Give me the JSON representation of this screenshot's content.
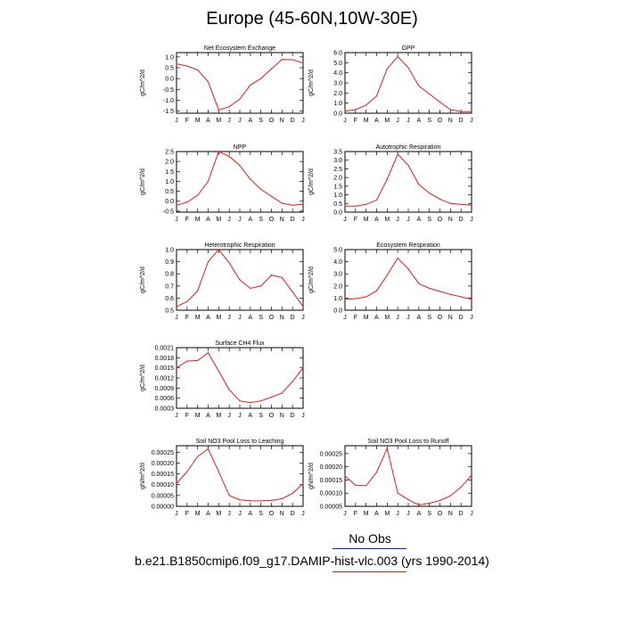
{
  "page": {
    "title": "Europe (45-60N,10W-30E)",
    "legend": {
      "obs_label": "No Obs",
      "case_label": "b.e21.B1850cmip6.f09_g17.DAMIP-hist-vlc.003 (yrs 1990-2014)",
      "obs_color": "#0b2a8c",
      "case_color": "#e41a1c"
    }
  },
  "chart_data": [
    {
      "type": "line",
      "title": "Net Ecosystem Exchange",
      "ylabel": "gC/m^2/d",
      "categories": [
        "J",
        "F",
        "M",
        "A",
        "M",
        "J",
        "J",
        "A",
        "S",
        "O",
        "N",
        "D",
        "J"
      ],
      "values": [
        0.68,
        0.58,
        0.4,
        -0.15,
        -1.45,
        -1.3,
        -0.95,
        -0.3,
        0.0,
        0.45,
        0.88,
        0.87,
        0.72
      ],
      "ylim": [
        -1.6,
        1.2
      ],
      "yticks": [
        "1.0",
        "0.5",
        "0.0",
        "-0.5",
        "-1.0",
        "-1.5"
      ],
      "ytick_values": [
        1.0,
        0.5,
        0.0,
        -0.5,
        -1.0,
        -1.5
      ],
      "color": "#e41a1c"
    },
    {
      "type": "line",
      "title": "GPP",
      "ylabel": "gC/m^2/d",
      "categories": [
        "J",
        "F",
        "M",
        "A",
        "M",
        "J",
        "J",
        "A",
        "S",
        "O",
        "N",
        "D",
        "J"
      ],
      "values": [
        0.2,
        0.35,
        0.8,
        1.7,
        4.4,
        5.6,
        4.5,
        2.7,
        1.9,
        1.1,
        0.35,
        0.15,
        0.15
      ],
      "ylim": [
        0.0,
        6.0
      ],
      "yticks": [
        "6.0",
        "5.0",
        "4.0",
        "3.0",
        "2.0",
        "1.0",
        "0.0"
      ],
      "ytick_values": [
        6.0,
        5.0,
        4.0,
        3.0,
        2.0,
        1.0,
        0.0
      ],
      "color": "#e41a1c"
    },
    {
      "type": "line",
      "title": "NPP",
      "ylabel": "gC/m^2/d",
      "categories": [
        "J",
        "F",
        "M",
        "A",
        "M",
        "J",
        "J",
        "A",
        "S",
        "O",
        "N",
        "D",
        "J"
      ],
      "values": [
        -0.2,
        -0.05,
        0.3,
        1.0,
        2.5,
        2.25,
        1.8,
        1.1,
        0.6,
        0.25,
        -0.1,
        -0.2,
        -0.15
      ],
      "ylim": [
        -0.55,
        2.5
      ],
      "yticks": [
        "2.5",
        "2.0",
        "1.5",
        "1.0",
        "0.5",
        "0.0",
        "-0.5"
      ],
      "ytick_values": [
        2.5,
        2.0,
        1.5,
        1.0,
        0.5,
        0.0,
        -0.5
      ],
      "color": "#e41a1c"
    },
    {
      "type": "line",
      "title": "Autotrophic Respiration",
      "ylabel": "gC/m^2/d",
      "categories": [
        "J",
        "F",
        "M",
        "A",
        "M",
        "J",
        "J",
        "A",
        "S",
        "O",
        "N",
        "D",
        "J"
      ],
      "values": [
        0.35,
        0.35,
        0.45,
        0.7,
        1.9,
        3.35,
        2.7,
        1.6,
        1.1,
        0.75,
        0.5,
        0.45,
        0.4
      ],
      "ylim": [
        0.0,
        3.5
      ],
      "yticks": [
        "3.5",
        "3.0",
        "2.5",
        "2.0",
        "1.5",
        "1.0",
        "0.5",
        "0.0"
      ],
      "ytick_values": [
        3.5,
        3.0,
        2.5,
        2.0,
        1.5,
        1.0,
        0.5,
        0.0
      ],
      "color": "#e41a1c"
    },
    {
      "type": "line",
      "title": "Heterotrophic Respiration",
      "ylabel": "gC/m^2/d",
      "categories": [
        "J",
        "F",
        "M",
        "A",
        "M",
        "J",
        "J",
        "A",
        "S",
        "O",
        "N",
        "D",
        "J"
      ],
      "values": [
        0.53,
        0.57,
        0.66,
        0.9,
        1.0,
        0.89,
        0.75,
        0.68,
        0.7,
        0.79,
        0.77,
        0.65,
        0.53
      ],
      "ylim": [
        0.5,
        1.0
      ],
      "yticks": [
        "1.0",
        "0.9",
        "0.8",
        "0.7",
        "0.6",
        "0.5"
      ],
      "ytick_values": [
        1.0,
        0.9,
        0.8,
        0.7,
        0.6,
        0.5
      ],
      "color": "#e41a1c"
    },
    {
      "type": "line",
      "title": "Ecosystem Respiration",
      "ylabel": "gC/m^2/d",
      "categories": [
        "J",
        "F",
        "M",
        "A",
        "M",
        "J",
        "J",
        "A",
        "S",
        "O",
        "N",
        "D",
        "J"
      ],
      "values": [
        0.9,
        0.95,
        1.1,
        1.6,
        2.9,
        4.3,
        3.4,
        2.2,
        1.8,
        1.55,
        1.3,
        1.1,
        0.9
      ],
      "ylim": [
        0.0,
        5.0
      ],
      "yticks": [
        "5.0",
        "4.0",
        "3.0",
        "2.0",
        "1.0",
        "0.0"
      ],
      "ytick_values": [
        5.0,
        4.0,
        3.0,
        2.0,
        1.0,
        0.0
      ],
      "color": "#e41a1c"
    },
    {
      "type": "line",
      "title": "Surface CH4 Flux",
      "ylabel": "gC/m^2/d",
      "categories": [
        "J",
        "F",
        "M",
        "A",
        "M",
        "J",
        "J",
        "A",
        "S",
        "O",
        "N",
        "D",
        "J"
      ],
      "values": [
        0.0015,
        0.0017,
        0.00172,
        0.00195,
        0.0014,
        0.00085,
        0.00052,
        0.00047,
        0.00052,
        0.00063,
        0.00075,
        0.0011,
        0.0015
      ],
      "ylim": [
        0.0003,
        0.0021
      ],
      "yticks": [
        "0.0021",
        "0.0018",
        "0.0015",
        "0.0012",
        "0.0009",
        "0.0006",
        "0.0003"
      ],
      "ytick_values": [
        0.0021,
        0.0018,
        0.0015,
        0.0012,
        0.0009,
        0.0006,
        0.0003
      ],
      "color": "#e41a1c"
    },
    {
      "type": "line",
      "title": "Soil NO3 Pool Loss to Leaching",
      "ylabel": "gN/m^2/d",
      "categories": [
        "J",
        "F",
        "M",
        "A",
        "M",
        "J",
        "J",
        "A",
        "S",
        "O",
        "N",
        "D",
        "J"
      ],
      "values": [
        0.000105,
        0.00016,
        0.00023,
        0.000265,
        0.00016,
        5e-05,
        3e-05,
        2.6e-05,
        2.5e-05,
        2.7e-05,
        3.5e-05,
        6e-05,
        0.000105
      ],
      "ylim": [
        0.0,
        0.00028
      ],
      "yticks": [
        "0.00025",
        "0.00020",
        "0.00015",
        "0.00010",
        "0.00005",
        "0.00000"
      ],
      "ytick_values": [
        0.00025,
        0.0002,
        0.00015,
        0.0001,
        5e-05,
        0.0
      ],
      "color": "#e41a1c"
    },
    {
      "type": "line",
      "title": "Soil NO3 Pool Loss to Runoff",
      "ylabel": "gN/m^2/d",
      "categories": [
        "J",
        "F",
        "M",
        "A",
        "M",
        "J",
        "J",
        "A",
        "S",
        "O",
        "N",
        "D",
        "J"
      ],
      "values": [
        0.000165,
        0.00013,
        0.000128,
        0.00018,
        0.00027,
        0.0001,
        7.5e-05,
        5.5e-05,
        6.2e-05,
        7.2e-05,
        9e-05,
        0.000123,
        0.000168
      ],
      "ylim": [
        5e-05,
        0.00028
      ],
      "yticks": [
        "0.00025",
        "0.00020",
        "0.00015",
        "0.00010",
        "0.00005"
      ],
      "ytick_values": [
        0.00025,
        0.0002,
        0.00015,
        0.0001,
        5e-05
      ],
      "color": "#e41a1c"
    }
  ]
}
